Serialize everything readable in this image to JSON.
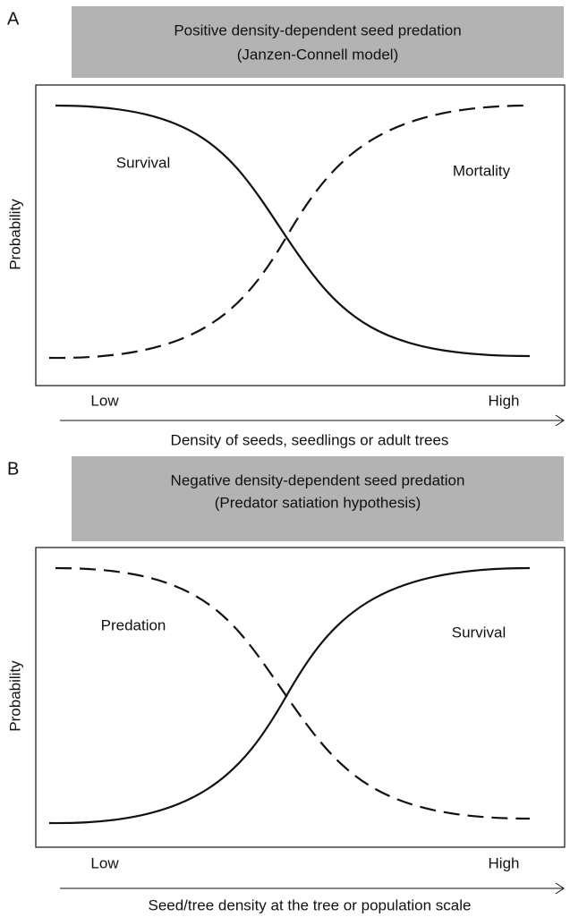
{
  "panels": [
    {
      "letter": "A",
      "title": [
        "Positive density-dependent seed predation",
        "(Janzen-Connell model)"
      ],
      "y_label": "Probability",
      "curve_labels": [
        "Survival",
        "Mortality"
      ],
      "x_low": "Low",
      "x_high": "High",
      "x_label": "Density of seeds, seedlings or adult trees"
    },
    {
      "letter": "B",
      "title": [
        "Negative density-dependent seed predation",
        "(Predator satiation hypothesis)"
      ],
      "y_label": "Probability",
      "curve_labels": [
        "Predation",
        "Survival"
      ],
      "x_low": "Low",
      "x_high": "High",
      "x_label": "Seed/tree density at the tree or population scale"
    }
  ]
}
